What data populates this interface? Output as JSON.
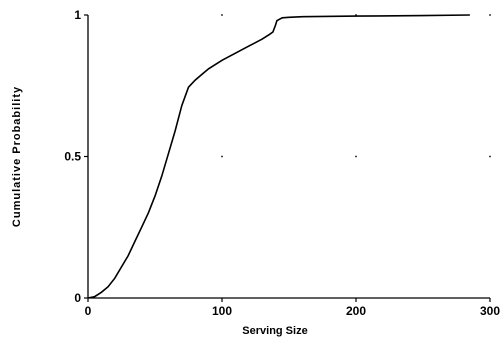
{
  "chart_data": {
    "type": "line",
    "title": "",
    "xlabel": "Serving Size",
    "ylabel": "Cumulative Probability",
    "xlim": [
      0,
      300
    ],
    "ylim": [
      0,
      1
    ],
    "x_ticks": [
      0,
      100,
      200,
      300
    ],
    "x_tick_labels": [
      "0",
      "100",
      "200",
      "300"
    ],
    "y_ticks": [
      0,
      0.5,
      1
    ],
    "y_tick_labels": [
      "0",
      "0.5",
      "1"
    ],
    "grid": "dots at tick intersections",
    "legend": "none",
    "line_color": "#000000",
    "series": [
      {
        "x": [
          0,
          5,
          10,
          15,
          20,
          25,
          30,
          35,
          40,
          45,
          50,
          55,
          60,
          65,
          70,
          75,
          80,
          85,
          90,
          100,
          110,
          120,
          130,
          135,
          138,
          140,
          141,
          143,
          145,
          150,
          160,
          200,
          250,
          285
        ],
        "y": [
          0,
          0.005,
          0.02,
          0.04,
          0.07,
          0.11,
          0.15,
          0.2,
          0.25,
          0.3,
          0.36,
          0.43,
          0.51,
          0.59,
          0.68,
          0.745,
          0.77,
          0.79,
          0.81,
          0.84,
          0.865,
          0.89,
          0.915,
          0.93,
          0.94,
          0.965,
          0.98,
          0.985,
          0.99,
          0.992,
          0.994,
          0.996,
          0.998,
          1.0
        ]
      }
    ]
  }
}
